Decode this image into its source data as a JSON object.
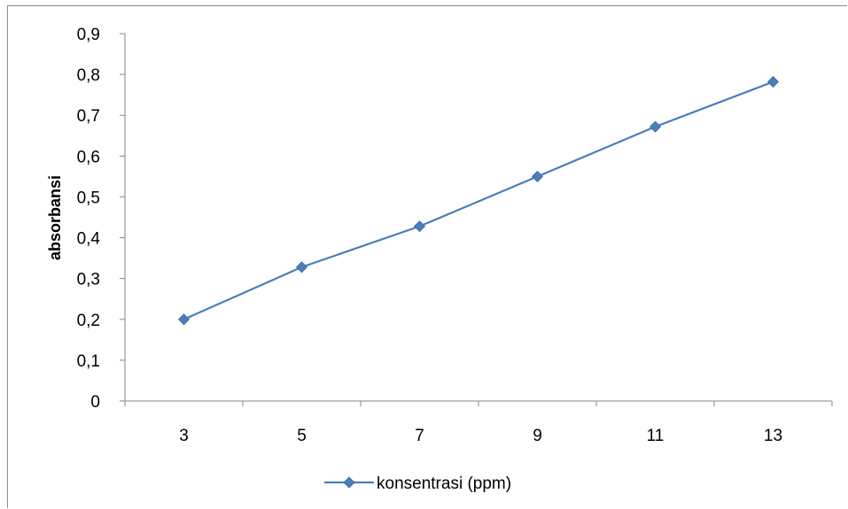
{
  "chart_data": {
    "type": "line",
    "title": "",
    "xlabel": "",
    "ylabel": "absorbansi",
    "categories": [
      "3",
      "5",
      "7",
      "9",
      "11",
      "13"
    ],
    "series": [
      {
        "name": "konsentrasi (ppm)",
        "values": [
          0.2,
          0.328,
          0.428,
          0.55,
          0.672,
          0.782
        ]
      }
    ],
    "ylim": [
      0,
      0.9
    ],
    "yticks": [
      "0",
      "0,1",
      "0,2",
      "0,3",
      "0,4",
      "0,5",
      "0,6",
      "0,7",
      "0,8",
      "0,9"
    ],
    "grid": false,
    "legend_position": "bottom",
    "colors": {
      "series": "#4a7ebb",
      "axis": "#868686"
    }
  }
}
